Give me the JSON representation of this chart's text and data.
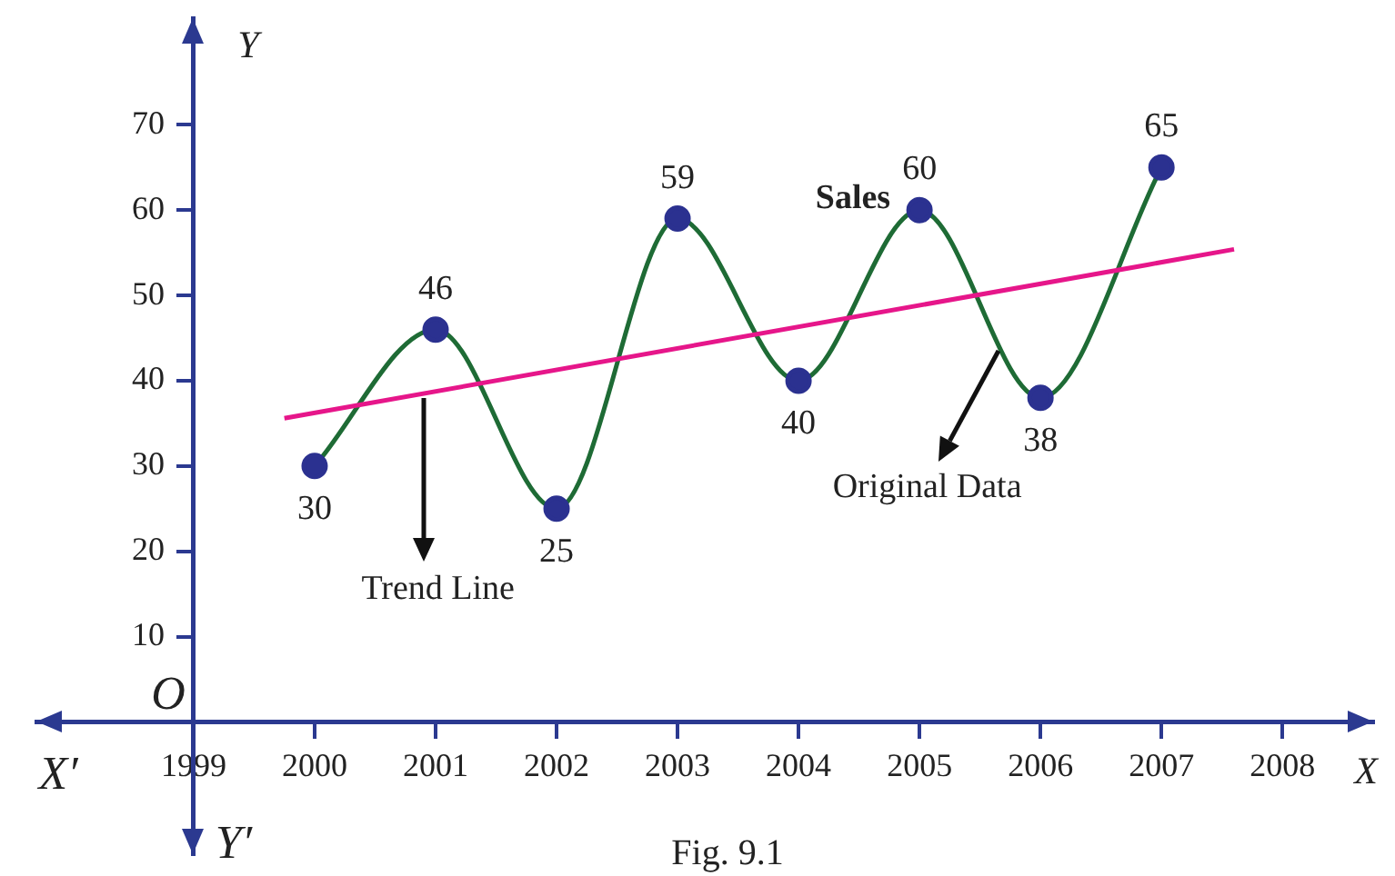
{
  "chart_data": {
    "type": "line",
    "xlabel": "X",
    "ylabel": "Y",
    "x": [
      2000,
      2001,
      2002,
      2003,
      2004,
      2005,
      2006,
      2007
    ],
    "series": [
      {
        "name": "Sales",
        "color": "#1e6b35",
        "marker": "circle",
        "values": [
          30,
          46,
          25,
          59,
          40,
          60,
          38,
          65
        ],
        "value_labels": [
          "30",
          "46",
          "25",
          "59",
          "40",
          "60",
          "38",
          "65"
        ]
      },
      {
        "type": "line",
        "color": "#e6168a",
        "marker": "none",
        "x": [
          1999.75,
          2007.6
        ],
        "values": [
          35.6,
          55.4
        ]
      }
    ],
    "xlim": [
      1997.7,
      2008.75
    ],
    "ylim": [
      -15.5,
      82.5
    ],
    "xticks": [
      1999,
      2000,
      2001,
      2002,
      2003,
      2004,
      2005,
      2006,
      2007,
      2008
    ],
    "yticks": [
      10,
      20,
      30,
      40,
      50,
      60,
      70
    ],
    "grid": false,
    "legend": false,
    "annotations": [
      "O",
      "X′",
      "Y′",
      "Fig. 9.1",
      {
        "text": "Trend Line",
        "x": 2000.9,
        "y": 38.5
      },
      {
        "text": "Original Data",
        "x": 2005.65,
        "y": 44
      }
    ]
  }
}
